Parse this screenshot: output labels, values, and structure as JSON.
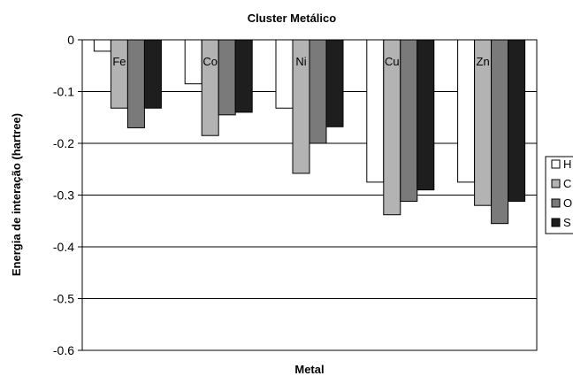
{
  "chart_data": {
    "type": "bar",
    "title": "Cluster Metálico",
    "xlabel": "Metal",
    "ylabel": "Energia de interação (hartree)",
    "ylim": [
      -0.6,
      0
    ],
    "yticks": [
      "0",
      "-0.1",
      "-0.2",
      "-0.3",
      "-0.4",
      "-0.5",
      "-0.6"
    ],
    "categories": [
      "Fe",
      "Co",
      "Ni",
      "Cu",
      "Zn"
    ],
    "grid": "horizontal",
    "legend_position": "right",
    "series": [
      {
        "name": "H",
        "color": "#ffffff",
        "values": [
          -0.022,
          -0.085,
          -0.132,
          -0.275,
          -0.275
        ]
      },
      {
        "name": "C",
        "color": "#b3b3b3",
        "values": [
          -0.132,
          -0.185,
          -0.258,
          -0.338,
          -0.32
        ]
      },
      {
        "name": "O",
        "color": "#7a7a7a",
        "values": [
          -0.17,
          -0.145,
          -0.2,
          -0.312,
          -0.355
        ]
      },
      {
        "name": "S",
        "color": "#1e1e1e",
        "values": [
          -0.132,
          -0.14,
          -0.168,
          -0.29,
          -0.312
        ]
      }
    ]
  }
}
